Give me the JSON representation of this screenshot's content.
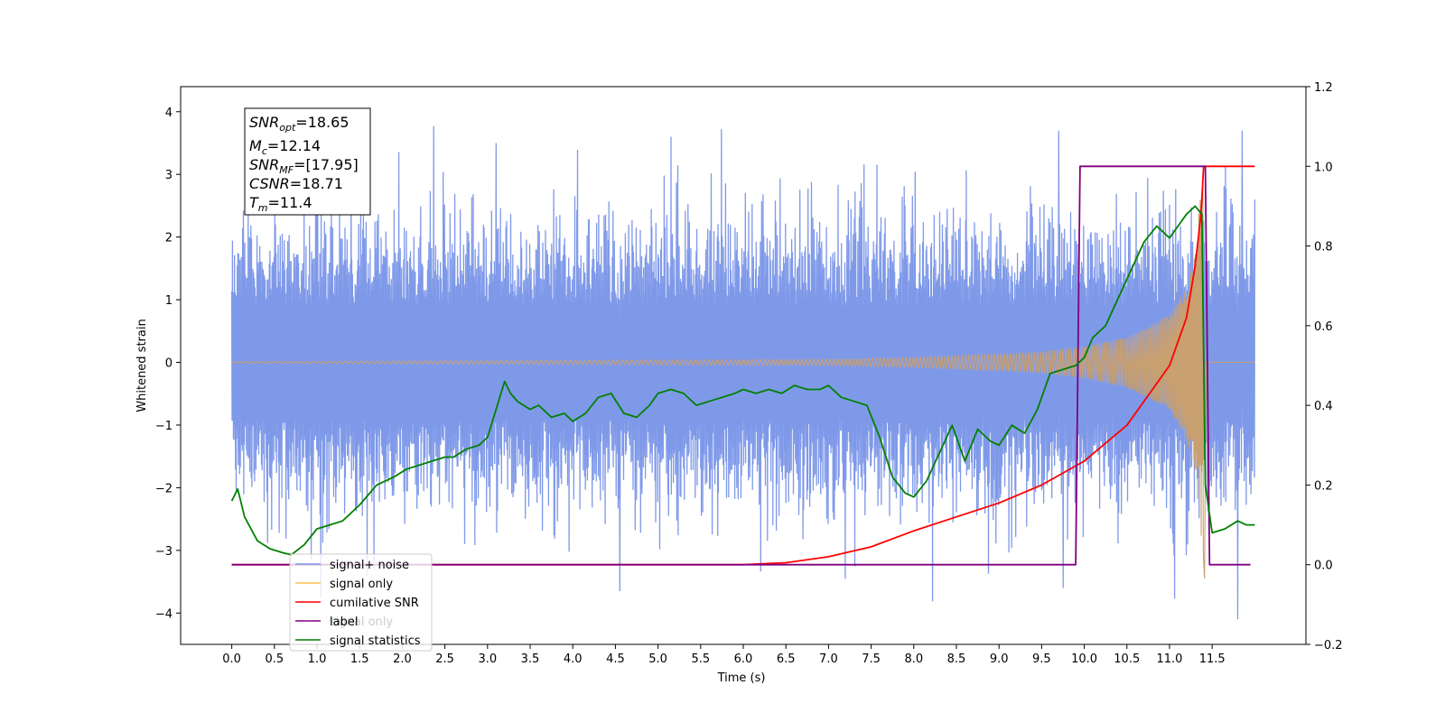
{
  "chart_data": {
    "type": "line",
    "xlabel": "Time (s)",
    "ylabel": "Whitened strain",
    "xlim": [
      -0.6,
      12.6
    ],
    "ylim": [
      -4.5,
      4.4
    ],
    "y2lim": [
      -0.2,
      1.2
    ],
    "x_ticks": [
      "0.0",
      "0.5",
      "1.0",
      "1.5",
      "2.0",
      "2.5",
      "3.0",
      "3.5",
      "4.0",
      "4.5",
      "5.0",
      "5.5",
      "6.0",
      "6.5",
      "7.0",
      "7.5",
      "8.0",
      "8.5",
      "9.0",
      "9.5",
      "10.0",
      "10.5",
      "11.0",
      "11.5"
    ],
    "y_ticks": [
      "4",
      "3",
      "2",
      "1",
      "0",
      "−1",
      "−2",
      "−3",
      "−4"
    ],
    "y2_ticks": [
      "1.2",
      "1.0",
      "0.8",
      "0.6",
      "0.4",
      "0.2",
      "0.0",
      "−0.2"
    ],
    "annotation_box": {
      "snr_opt": {
        "name": "SNR",
        "sub": "opt",
        "value": "=18.65"
      },
      "mc": {
        "name": "M",
        "sub": "c",
        "value": "=12.14"
      },
      "snr_mf": {
        "name": "SNR",
        "sub": "MF",
        "value": "=[17.95]"
      },
      "csnr": {
        "name": "CSNR",
        "value": "=18.71"
      },
      "tm": {
        "name": "T",
        "sub": "m",
        "value": "=11.4"
      }
    },
    "legend": {
      "placement": "lower-left",
      "entries": [
        {
          "label": "signal+ noise",
          "color": "#7894e8"
        },
        {
          "label": "signal only",
          "color": "#ffc04d"
        },
        {
          "label": "cumilative SNR",
          "color": "#ff0000"
        },
        {
          "label": "label",
          "color": "#800080"
        },
        {
          "label": "signal statistics",
          "color": "#008000"
        }
      ],
      "hidden_overlap_text": "signal only"
    },
    "series": [
      {
        "name": "signal+ noise",
        "axis": "left",
        "color": "#7894e8",
        "x_range": [
          0.0,
          12.0
        ],
        "envelope_upper": [
          2.5,
          2.4
        ],
        "envelope_lower": [
          -2.4,
          -2.5
        ],
        "peaks": [
          [
            1.0,
            2.6
          ],
          [
            3.1,
            3.5
          ],
          [
            5.15,
            3.6
          ],
          [
            9.7,
            3.7
          ],
          [
            11.85,
            3.7
          ],
          [
            4.55,
            -3.65
          ],
          [
            11.8,
            -4.1
          ],
          [
            9.75,
            -3.6
          ]
        ]
      },
      {
        "name": "signal only",
        "axis": "left",
        "color": "#c9a070",
        "chirp": {
          "start": 0.0,
          "merger": 11.4,
          "end": 12.0
        },
        "amplitude": [
          [
            0.0,
            0.01
          ],
          [
            7.0,
            0.05
          ],
          [
            8.0,
            0.08
          ],
          [
            9.0,
            0.13
          ],
          [
            9.5,
            0.17
          ],
          [
            10.0,
            0.25
          ],
          [
            10.5,
            0.4
          ],
          [
            11.0,
            0.75
          ],
          [
            11.2,
            1.2
          ],
          [
            11.3,
            1.8
          ],
          [
            11.36,
            2.6
          ],
          [
            11.4,
            3.2
          ]
        ],
        "merger_dip": -3.45
      },
      {
        "name": "cumilative SNR",
        "axis": "right",
        "color": "#ff0000",
        "x": [
          0.0,
          6.0,
          6.5,
          7.0,
          7.5,
          8.0,
          8.5,
          9.0,
          9.5,
          10.0,
          10.5,
          11.0,
          11.2,
          11.3,
          11.37,
          11.4,
          11.42,
          12.0
        ],
        "y": [
          0.0,
          0.0,
          0.005,
          0.02,
          0.045,
          0.085,
          0.12,
          0.155,
          0.2,
          0.26,
          0.35,
          0.5,
          0.62,
          0.75,
          0.88,
          1.0,
          1.0,
          1.0
        ]
      },
      {
        "name": "label",
        "axis": "right",
        "color": "#800080",
        "x": [
          0.0,
          9.9,
          9.95,
          11.42,
          11.47,
          11.95
        ],
        "y": [
          0.0,
          0.0,
          1.0,
          1.0,
          0.0,
          0.0
        ]
      },
      {
        "name": "signal statistics",
        "axis": "right",
        "color": "#008000",
        "x": [
          0.0,
          0.07,
          0.15,
          0.3,
          0.45,
          0.6,
          0.7,
          0.85,
          1.0,
          1.15,
          1.3,
          1.5,
          1.7,
          1.9,
          2.05,
          2.2,
          2.35,
          2.5,
          2.6,
          2.75,
          2.9,
          3.0,
          3.1,
          3.2,
          3.27,
          3.35,
          3.5,
          3.6,
          3.75,
          3.9,
          4.0,
          4.15,
          4.3,
          4.45,
          4.6,
          4.75,
          4.9,
          5.0,
          5.15,
          5.3,
          5.45,
          5.6,
          5.75,
          5.9,
          6.0,
          6.15,
          6.3,
          6.45,
          6.6,
          6.75,
          6.9,
          7.0,
          7.15,
          7.3,
          7.45,
          7.6,
          7.75,
          7.9,
          8.0,
          8.15,
          8.3,
          8.45,
          8.6,
          8.75,
          8.9,
          9.0,
          9.15,
          9.3,
          9.45,
          9.6,
          9.75,
          9.9,
          10.0,
          10.1,
          10.25,
          10.4,
          10.55,
          10.7,
          10.85,
          11.0,
          11.1,
          11.2,
          11.3,
          11.38,
          11.42,
          11.5,
          11.65,
          11.8,
          11.9,
          12.0
        ],
        "y": [
          0.16,
          0.19,
          0.12,
          0.06,
          0.04,
          0.03,
          0.025,
          0.05,
          0.09,
          0.1,
          0.11,
          0.15,
          0.2,
          0.22,
          0.24,
          0.25,
          0.26,
          0.27,
          0.27,
          0.29,
          0.3,
          0.32,
          0.39,
          0.46,
          0.43,
          0.41,
          0.39,
          0.4,
          0.37,
          0.38,
          0.36,
          0.38,
          0.42,
          0.43,
          0.38,
          0.37,
          0.4,
          0.43,
          0.44,
          0.43,
          0.4,
          0.41,
          0.42,
          0.43,
          0.44,
          0.43,
          0.44,
          0.43,
          0.45,
          0.44,
          0.44,
          0.45,
          0.42,
          0.41,
          0.4,
          0.32,
          0.22,
          0.18,
          0.17,
          0.21,
          0.28,
          0.35,
          0.26,
          0.34,
          0.31,
          0.3,
          0.35,
          0.33,
          0.39,
          0.48,
          0.49,
          0.5,
          0.52,
          0.57,
          0.6,
          0.67,
          0.74,
          0.81,
          0.85,
          0.82,
          0.85,
          0.88,
          0.9,
          0.88,
          0.2,
          0.08,
          0.09,
          0.11,
          0.1,
          0.1
        ]
      }
    ]
  }
}
